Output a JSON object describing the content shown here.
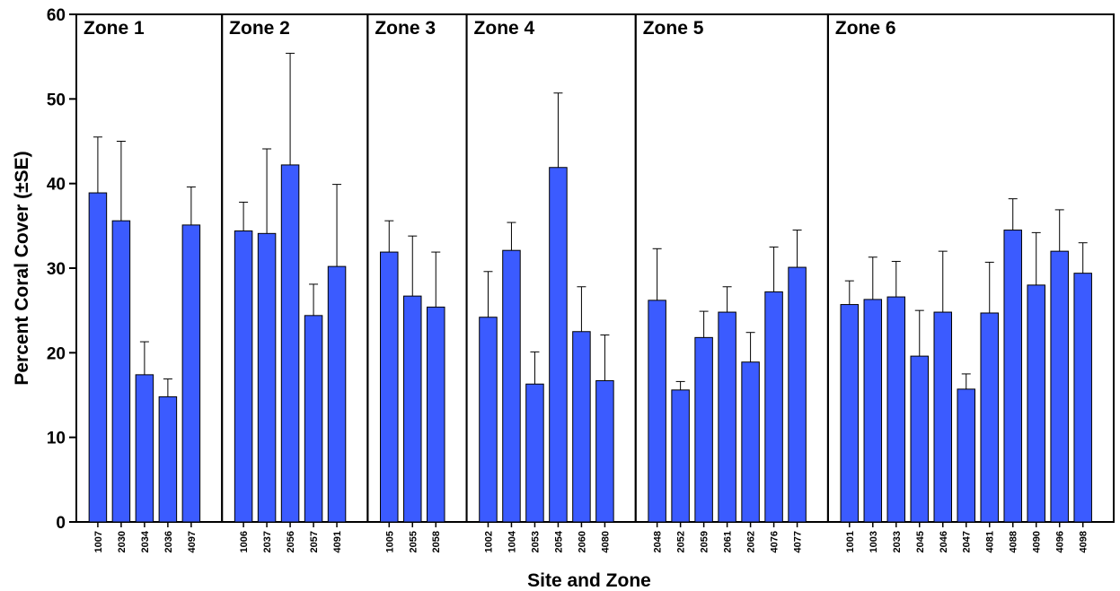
{
  "chart_data": {
    "type": "bar",
    "xlabel": "Site and Zone",
    "ylabel": "Percent Coral Cover (±SE)",
    "ylim": [
      0,
      60
    ],
    "yticks": [
      0,
      10,
      20,
      30,
      40,
      50,
      60
    ],
    "grid": false,
    "bar_color": "#3b5bff",
    "error_bars": "one-sided (+SE)",
    "zones": [
      {
        "name": "Zone 1",
        "sites": [
          "1007",
          "2030",
          "2034",
          "2036",
          "4097"
        ],
        "values": [
          38.9,
          35.6,
          17.4,
          14.8,
          35.1
        ],
        "se": [
          6.6,
          9.4,
          3.9,
          2.1,
          4.5
        ]
      },
      {
        "name": "Zone 2",
        "sites": [
          "1006",
          "2037",
          "2056",
          "2057",
          "4091"
        ],
        "values": [
          34.4,
          34.1,
          42.2,
          24.4,
          30.2
        ],
        "se": [
          3.4,
          10.0,
          13.2,
          3.7,
          9.7
        ]
      },
      {
        "name": "Zone 3",
        "sites": [
          "1005",
          "2055",
          "2058"
        ],
        "values": [
          31.9,
          26.7,
          25.4
        ],
        "se": [
          3.7,
          7.1,
          6.5
        ]
      },
      {
        "name": "Zone 4",
        "sites": [
          "1002",
          "1004",
          "2053",
          "2054",
          "2060",
          "4080"
        ],
        "values": [
          24.2,
          32.1,
          16.3,
          41.9,
          22.5,
          16.7
        ],
        "se": [
          5.4,
          3.3,
          3.8,
          8.8,
          5.3,
          5.4
        ]
      },
      {
        "name": "Zone 5",
        "sites": [
          "2048",
          "2052",
          "2059",
          "2061",
          "2062",
          "4076",
          "4077"
        ],
        "values": [
          26.2,
          15.6,
          21.8,
          24.8,
          18.9,
          27.2,
          30.1
        ],
        "se": [
          6.1,
          1.0,
          3.1,
          3.0,
          3.5,
          5.3,
          4.4
        ]
      },
      {
        "name": "Zone 6",
        "sites": [
          "1001",
          "1003",
          "2033",
          "2045",
          "2046",
          "2047",
          "4081",
          "4088",
          "4090",
          "4096",
          "4098"
        ],
        "values": [
          25.7,
          26.3,
          26.6,
          19.6,
          24.8,
          15.7,
          24.7,
          34.5,
          28.0,
          32.0,
          29.4
        ],
        "se": [
          2.8,
          5.0,
          4.2,
          5.4,
          7.2,
          1.8,
          6.0,
          3.7,
          6.2,
          4.9,
          3.6
        ]
      }
    ]
  }
}
